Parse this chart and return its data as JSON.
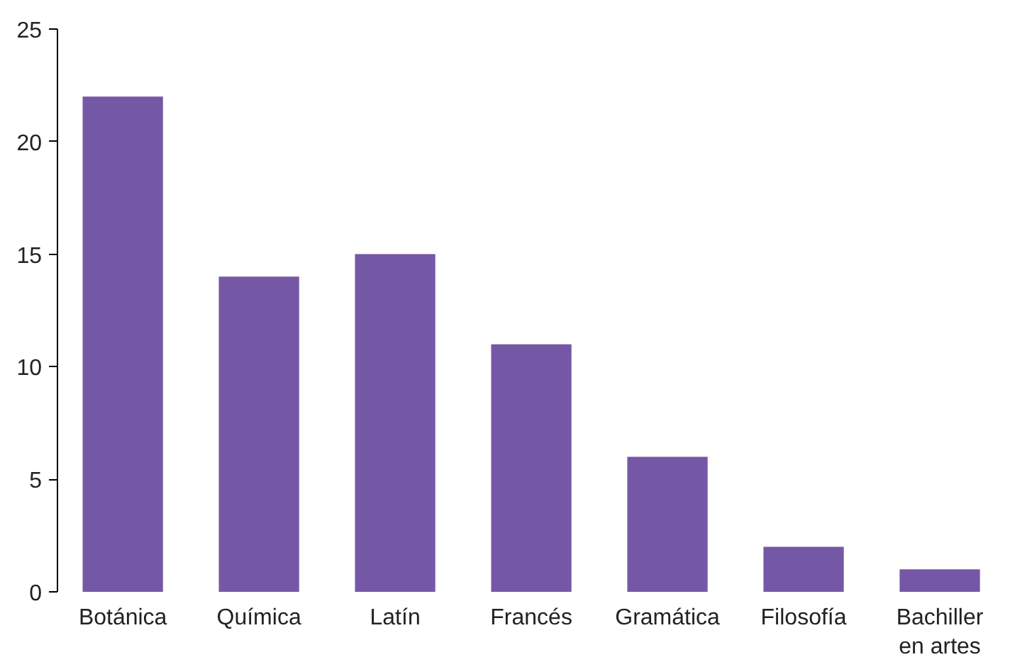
{
  "chart_data": {
    "type": "bar",
    "categories": [
      "Botánica",
      "Química",
      "Latín",
      "Francés",
      "Gramática",
      "Filosofía",
      "Bachiller en artes"
    ],
    "values": [
      22,
      14,
      15,
      11,
      6,
      2,
      1
    ],
    "color": "#7558a5",
    "ylim": [
      0,
      25
    ],
    "yticks": [
      0,
      5,
      10,
      15,
      20,
      25
    ],
    "grid": false
  }
}
